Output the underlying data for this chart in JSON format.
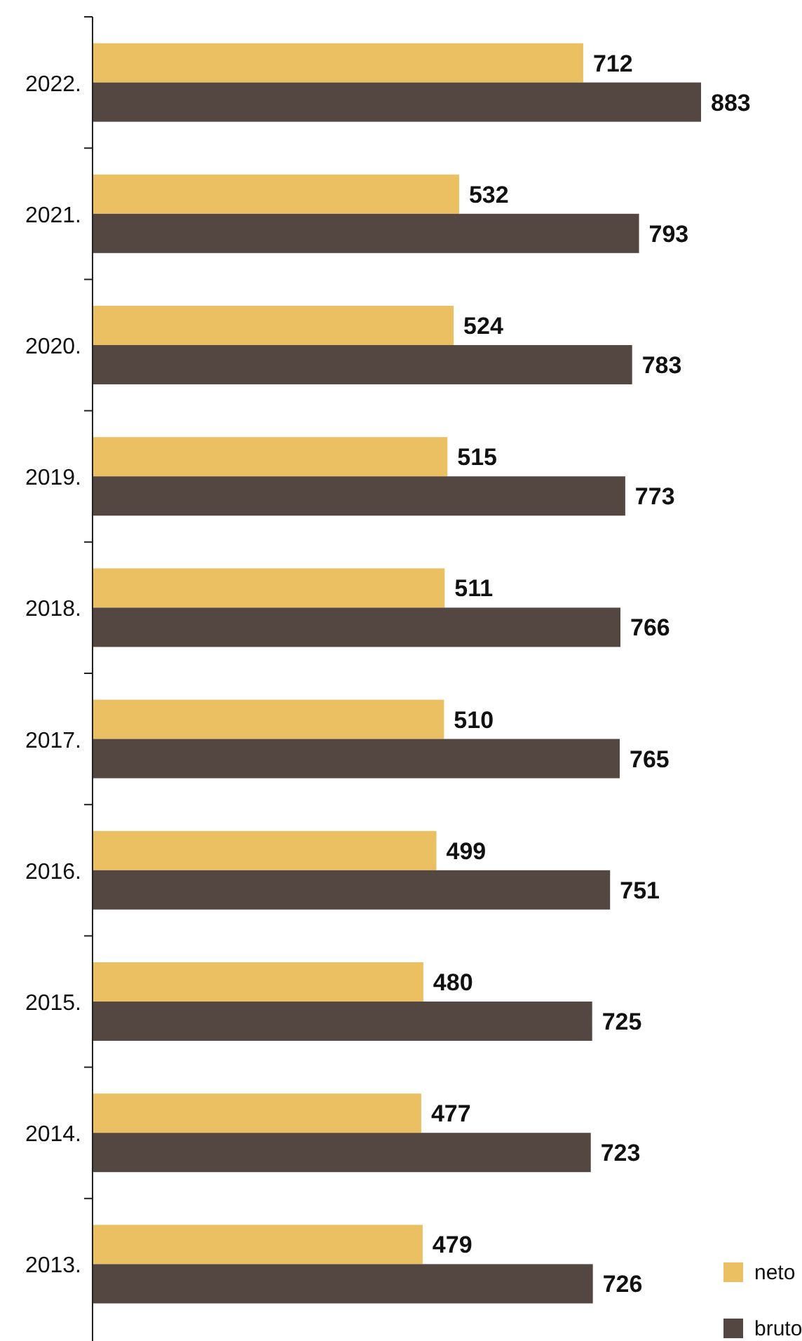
{
  "chart_data": {
    "type": "bar",
    "orientation": "horizontal",
    "categories": [
      "2022.",
      "2021.",
      "2020.",
      "2019.",
      "2018.",
      "2017.",
      "2016.",
      "2015.",
      "2014.",
      "2013."
    ],
    "series": [
      {
        "name": "neto",
        "color": "#ebc063",
        "values": [
          712,
          532,
          524,
          515,
          511,
          510,
          499,
          480,
          477,
          479
        ]
      },
      {
        "name": "bruto",
        "color": "#544641",
        "values": [
          883,
          793,
          783,
          773,
          766,
          765,
          751,
          725,
          723,
          726
        ]
      }
    ],
    "data_labels": true,
    "legend": "bottom right",
    "grid": false
  }
}
